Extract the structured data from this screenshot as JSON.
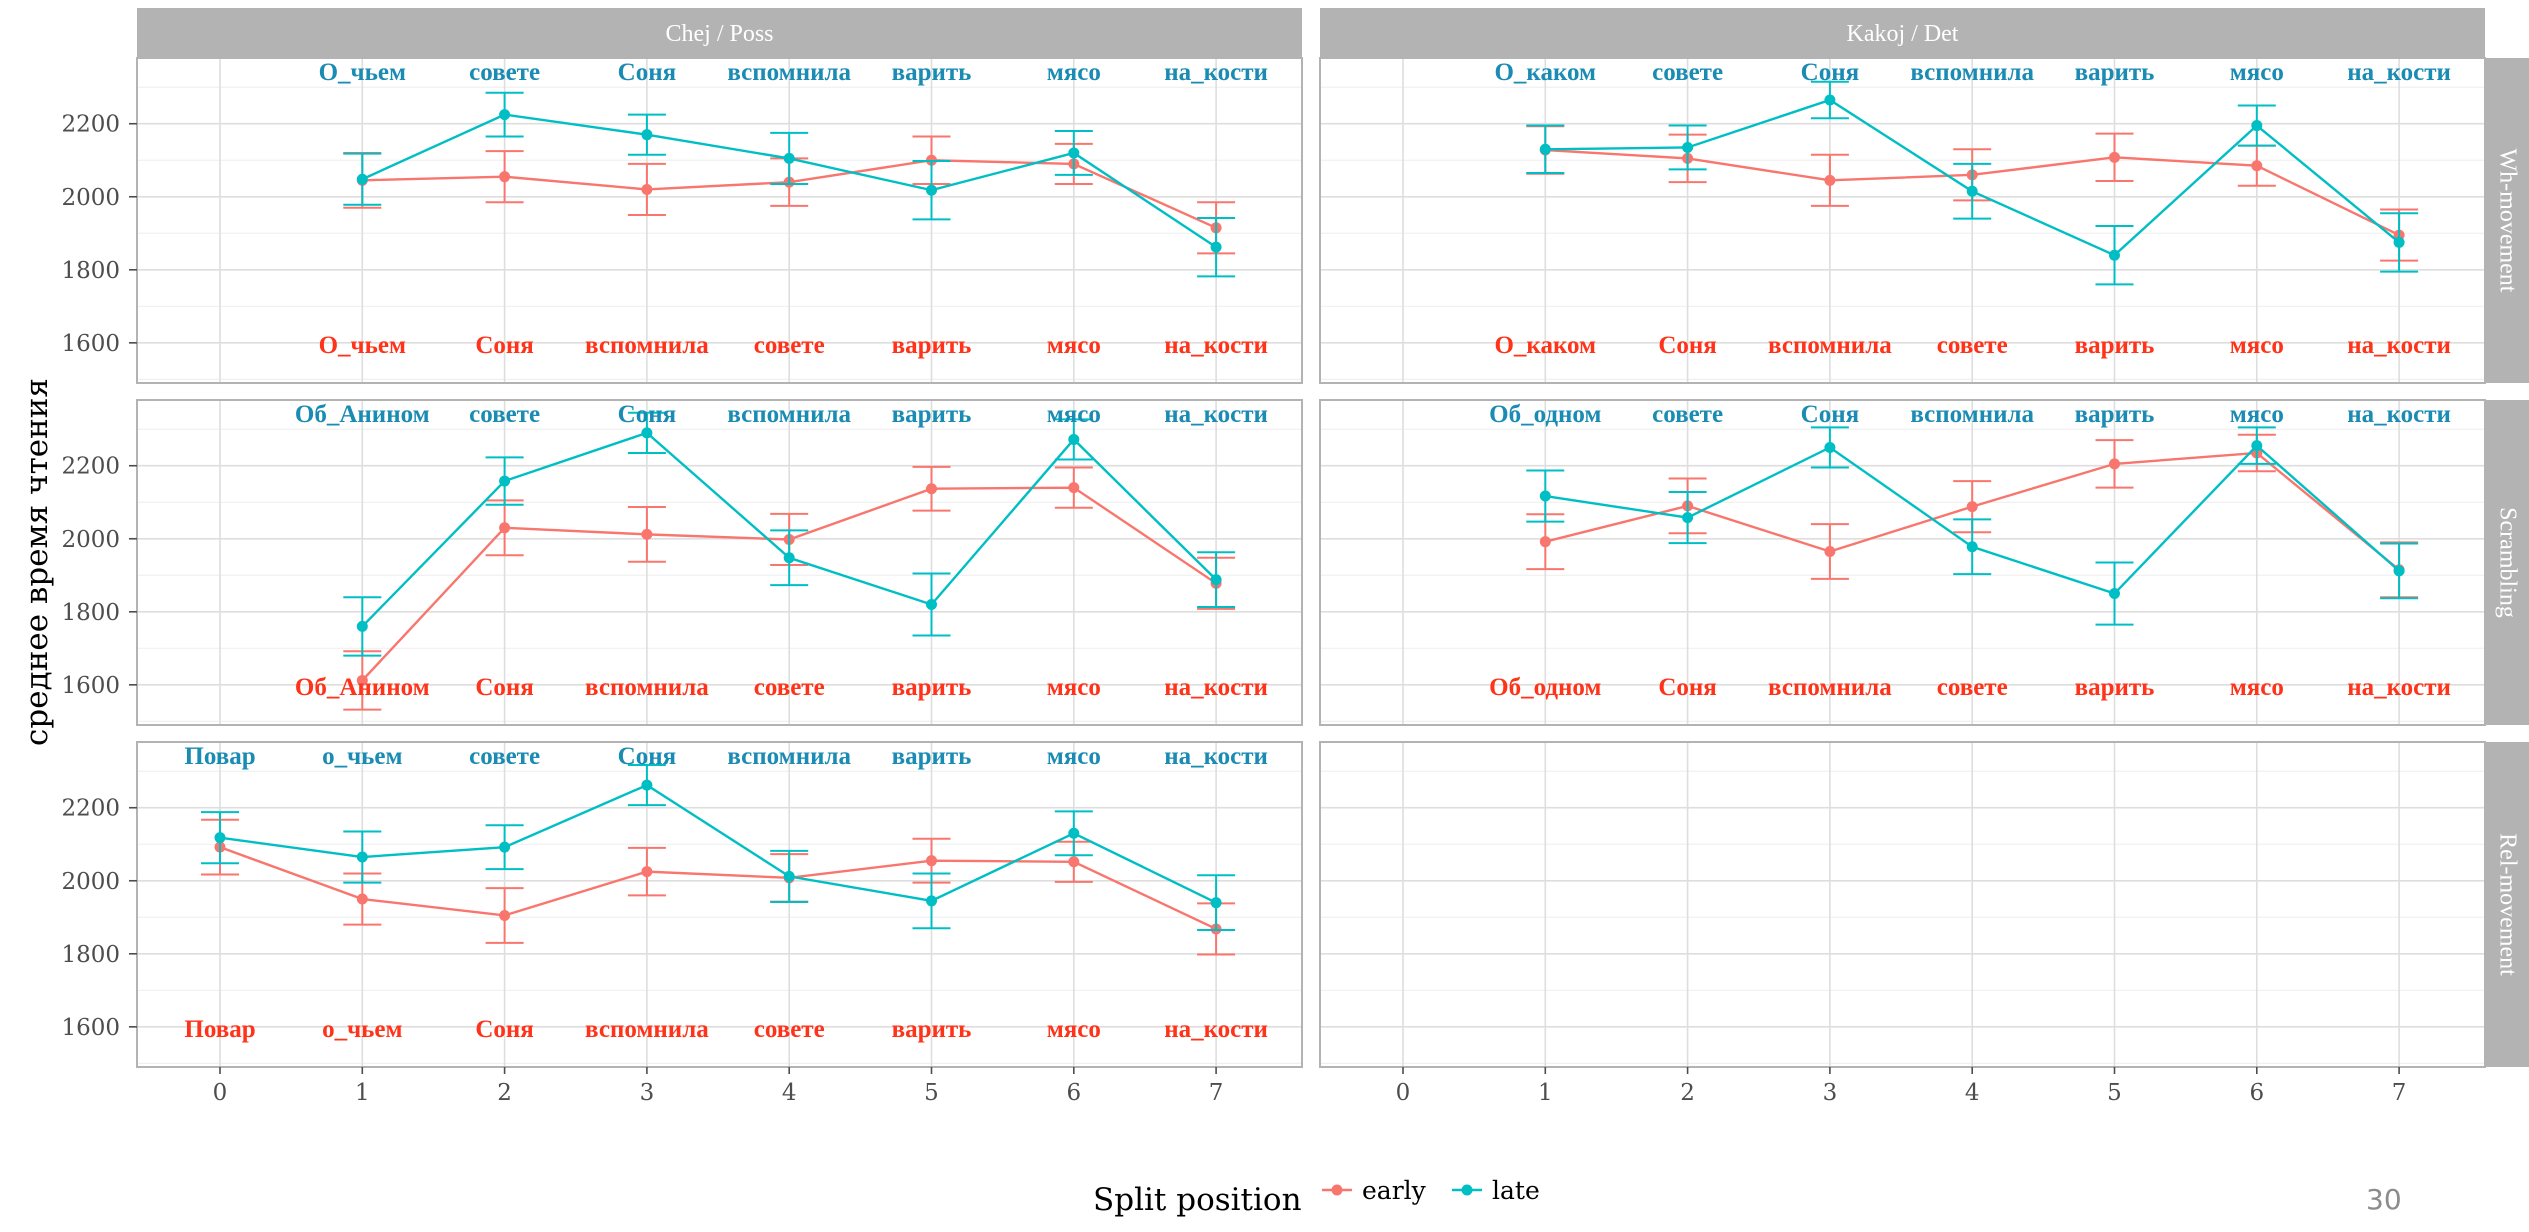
{
  "page_number": "30",
  "chart_data": {
    "type": "line",
    "ylabel": "среднее время чтения",
    "xlabel": "",
    "x": [
      0,
      1,
      2,
      3,
      4,
      5,
      6,
      7
    ],
    "x_ticks": [
      "0",
      "1",
      "2",
      "3",
      "4",
      "5",
      "6",
      "7"
    ],
    "ylim": [
      1490,
      2380
    ],
    "y_ticks": [
      1600,
      1800,
      2000,
      2200
    ],
    "y_tick_labels": [
      "1600",
      "1800",
      "2000",
      "2200"
    ],
    "grid": true,
    "error_bars": true,
    "legend": {
      "title": "Split position",
      "position": "bottom",
      "entries": [
        {
          "name": "early",
          "color": "#F8766D"
        },
        {
          "name": "late",
          "color": "#00BFC4"
        }
      ]
    },
    "label_colors": {
      "top": "#1a8bb3",
      "bottom": "#ff3319"
    },
    "facet_columns": [
      "Chej / Poss",
      "Kakoj / Det"
    ],
    "facet_rows": [
      "Wh-movement",
      "Scrambling",
      "Rel-movement"
    ],
    "panels": [
      {
        "row": "Wh-movement",
        "column": "Chej / Poss",
        "top_words": [
          "",
          "О_чьем",
          "совете",
          "Соня",
          "вспомнила",
          "варить",
          "мясо",
          "на_кости"
        ],
        "bottom_words": [
          "",
          "О_чьем",
          "Соня",
          "вспомнила",
          "совете",
          "варить",
          "мясо",
          "на_кости"
        ],
        "series": [
          {
            "name": "early",
            "x": [
              1,
              2,
              3,
              4,
              5,
              6,
              7
            ],
            "values": [
              2045,
              2055,
              2020,
              2040,
              2100,
              2090,
              1915
            ],
            "errors": [
              75,
              70,
              70,
              65,
              65,
              55,
              70
            ]
          },
          {
            "name": "late",
            "x": [
              1,
              2,
              3,
              4,
              5,
              6,
              7
            ],
            "values": [
              2048,
              2225,
              2170,
              2105,
              2018,
              2120,
              1862
            ],
            "errors": [
              70,
              60,
              55,
              70,
              80,
              60,
              80
            ]
          }
        ]
      },
      {
        "row": "Wh-movement",
        "column": "Kakoj / Det",
        "top_words": [
          "",
          "О_каком",
          "совете",
          "Соня",
          "вспомнила",
          "варить",
          "мясо",
          "на_кости"
        ],
        "bottom_words": [
          "",
          "О_каком",
          "Соня",
          "вспомнила",
          "совете",
          "варить",
          "мясо",
          "на_кости"
        ],
        "series": [
          {
            "name": "early",
            "x": [
              1,
              2,
              3,
              4,
              5,
              6,
              7
            ],
            "values": [
              2128,
              2105,
              2045,
              2060,
              2108,
              2085,
              1895
            ],
            "errors": [
              65,
              65,
              70,
              70,
              65,
              55,
              70
            ]
          },
          {
            "name": "late",
            "x": [
              1,
              2,
              3,
              4,
              5,
              6,
              7
            ],
            "values": [
              2130,
              2135,
              2265,
              2015,
              1840,
              2195,
              1875
            ],
            "errors": [
              65,
              60,
              50,
              75,
              80,
              55,
              80
            ]
          }
        ]
      },
      {
        "row": "Scrambling",
        "column": "Chej / Poss",
        "top_words": [
          "",
          "Об_Анином",
          "совете",
          "Соня",
          "вспомнила",
          "варить",
          "мясо",
          "на_кости"
        ],
        "bottom_words": [
          "",
          "Об_Анином",
          "Соня",
          "вспомнила",
          "совете",
          "варить",
          "мясо",
          "на_кости"
        ],
        "series": [
          {
            "name": "early",
            "x": [
              1,
              2,
              3,
              4,
              5,
              6,
              7
            ],
            "values": [
              1612,
              2030,
              2012,
              1998,
              2137,
              2140,
              1878
            ],
            "errors": [
              80,
              75,
              75,
              70,
              60,
              55,
              70
            ]
          },
          {
            "name": "late",
            "x": [
              1,
              2,
              3,
              4,
              5,
              6,
              7
            ],
            "values": [
              1760,
              2158,
              2290,
              1948,
              1820,
              2272,
              1888
            ],
            "errors": [
              80,
              65,
              55,
              75,
              85,
              55,
              75
            ]
          }
        ]
      },
      {
        "row": "Scrambling",
        "column": "Kakoj / Det",
        "top_words": [
          "",
          "Об_одном",
          "совете",
          "Соня",
          "вспомнила",
          "варить",
          "мясо",
          "на_кости"
        ],
        "bottom_words": [
          "",
          "Об_одном",
          "Соня",
          "вспомнила",
          "совете",
          "варить",
          "мясо",
          "на_кости"
        ],
        "series": [
          {
            "name": "early",
            "x": [
              1,
              2,
              3,
              4,
              5,
              6,
              7
            ],
            "values": [
              1992,
              2090,
              1965,
              2088,
              2205,
              2235,
              1915
            ],
            "errors": [
              75,
              75,
              75,
              70,
              65,
              50,
              75
            ]
          },
          {
            "name": "late",
            "x": [
              1,
              2,
              3,
              4,
              5,
              6,
              7
            ],
            "values": [
              2117,
              2058,
              2250,
              1978,
              1850,
              2255,
              1912
            ],
            "errors": [
              70,
              70,
              55,
              75,
              85,
              50,
              75
            ]
          }
        ]
      },
      {
        "row": "Rel-movement",
        "column": "Chej / Poss",
        "top_words": [
          "Повар",
          "о_чьем",
          "совете",
          "Соня",
          "вспомнила",
          "варить",
          "мясо",
          "на_кости"
        ],
        "bottom_words": [
          "Повар",
          "о_чьем",
          "Соня",
          "вспомнила",
          "совете",
          "варить",
          "мясо",
          "на_кости"
        ],
        "series": [
          {
            "name": "early",
            "x": [
              0,
              1,
              2,
              3,
              4,
              5,
              6,
              7
            ],
            "values": [
              2092,
              1950,
              1905,
              2025,
              2008,
              2055,
              2052,
              1868
            ],
            "errors": [
              75,
              70,
              75,
              65,
              65,
              60,
              55,
              70
            ]
          },
          {
            "name": "late",
            "x": [
              0,
              1,
              2,
              3,
              4,
              5,
              6,
              7
            ],
            "values": [
              2118,
              2065,
              2092,
              2262,
              2012,
              1945,
              2130,
              1940
            ],
            "errors": [
              70,
              70,
              60,
              55,
              70,
              75,
              60,
              75
            ]
          }
        ]
      },
      {
        "row": "Rel-movement",
        "column": "Kakoj / Det",
        "top_words": [],
        "bottom_words": [],
        "series": []
      }
    ]
  }
}
